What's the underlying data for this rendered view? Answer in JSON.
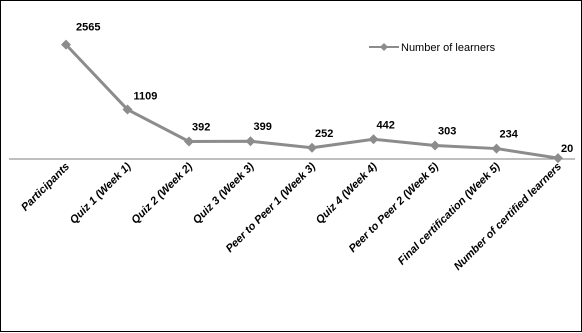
{
  "chart_data": {
    "type": "line",
    "categories": [
      "Participants",
      "Quiz 1 (Week 1)",
      "Quiz 2 (Week 2)",
      "Quiz 3 (Week 3)",
      "Peer to Peer 1 (Week 3)",
      "Quiz 4 (Week 4)",
      "Peer to Peer 2 (Week 5)",
      "Final certification (Week 5)",
      "Number of certified learners"
    ],
    "series": [
      {
        "name": "Number of learners",
        "values": [
          2565,
          1109,
          392,
          399,
          252,
          442,
          303,
          234,
          20
        ]
      }
    ],
    "value_labels": [
      "2565",
      "1109",
      "392",
      "399",
      "252",
      "442",
      "303",
      "234",
      "20"
    ],
    "legend": "top-right",
    "grid": false,
    "line_color": "#8c8c8c",
    "marker": "diamond"
  }
}
